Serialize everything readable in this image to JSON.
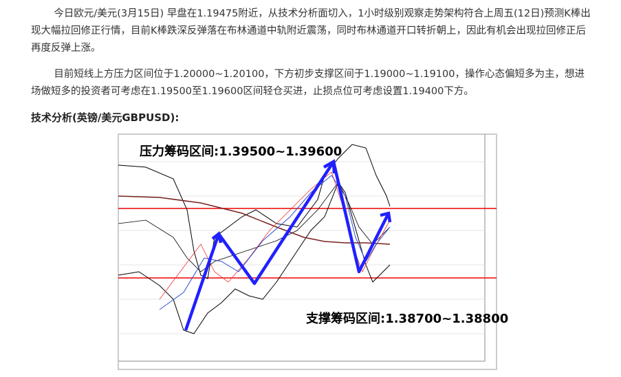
{
  "paragraphs": [
    "今日欧元/美元(3月15日) 早盘在1.19475附近，从技术分析面切入，1小时级别观察走势架构符合上周五(12日)预测K棒出现大幅拉回修正行情，目前K棒跌深反弹落在布林通道中轨附近震荡，同时布林通道开口转折朝上，因此有机会出现拉回修正后再度反弹上涨。",
    "目前短线上方压力区间位于1.20000~1.20100，下方初步支撑区间于1.19000~1.19100，操作心态偏短多为主，想进场做短多的投资者可考虑在1.19500至1.19600区间轻仓买进，止损点位可考虑设置1.19400下方。"
  ],
  "heading": "技术分析(英镑/美元GBPUSD):",
  "chart_image": {
    "resistance_label": "压力筹码区间:1.39500~1.39600",
    "support_label": "支撑筹码区间:1.38700~1.38800"
  }
}
